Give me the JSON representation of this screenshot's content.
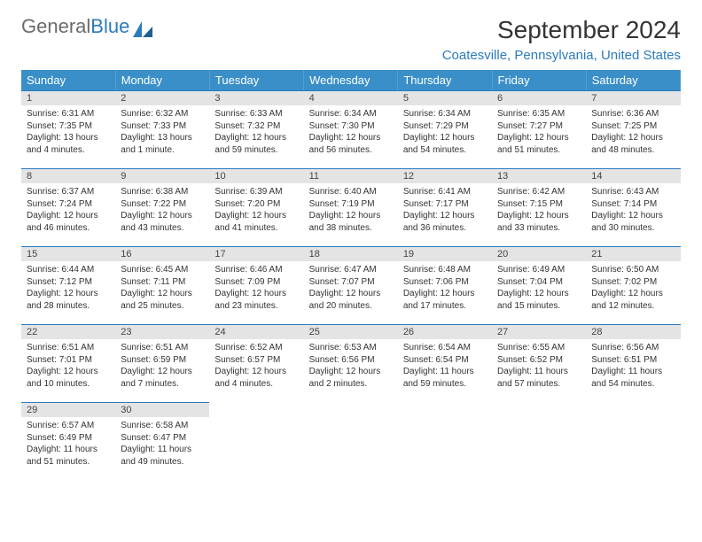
{
  "brand": {
    "part1": "General",
    "part2": "Blue"
  },
  "header": {
    "month_title": "September 2024",
    "location": "Coatesville, Pennsylvania, United States"
  },
  "colors": {
    "header_bg": "#3a8fc9",
    "accent": "#2b7bbd",
    "daynum_bg": "#e4e4e4",
    "text": "#333333",
    "logo_grey": "#6b6b6b"
  },
  "day_headers": [
    "Sunday",
    "Monday",
    "Tuesday",
    "Wednesday",
    "Thursday",
    "Friday",
    "Saturday"
  ],
  "weeks": [
    [
      {
        "n": "1",
        "sunrise": "Sunrise: 6:31 AM",
        "sunset": "Sunset: 7:35 PM",
        "daylight1": "Daylight: 13 hours",
        "daylight2": "and 4 minutes."
      },
      {
        "n": "2",
        "sunrise": "Sunrise: 6:32 AM",
        "sunset": "Sunset: 7:33 PM",
        "daylight1": "Daylight: 13 hours",
        "daylight2": "and 1 minute."
      },
      {
        "n": "3",
        "sunrise": "Sunrise: 6:33 AM",
        "sunset": "Sunset: 7:32 PM",
        "daylight1": "Daylight: 12 hours",
        "daylight2": "and 59 minutes."
      },
      {
        "n": "4",
        "sunrise": "Sunrise: 6:34 AM",
        "sunset": "Sunset: 7:30 PM",
        "daylight1": "Daylight: 12 hours",
        "daylight2": "and 56 minutes."
      },
      {
        "n": "5",
        "sunrise": "Sunrise: 6:34 AM",
        "sunset": "Sunset: 7:29 PM",
        "daylight1": "Daylight: 12 hours",
        "daylight2": "and 54 minutes."
      },
      {
        "n": "6",
        "sunrise": "Sunrise: 6:35 AM",
        "sunset": "Sunset: 7:27 PM",
        "daylight1": "Daylight: 12 hours",
        "daylight2": "and 51 minutes."
      },
      {
        "n": "7",
        "sunrise": "Sunrise: 6:36 AM",
        "sunset": "Sunset: 7:25 PM",
        "daylight1": "Daylight: 12 hours",
        "daylight2": "and 48 minutes."
      }
    ],
    [
      {
        "n": "8",
        "sunrise": "Sunrise: 6:37 AM",
        "sunset": "Sunset: 7:24 PM",
        "daylight1": "Daylight: 12 hours",
        "daylight2": "and 46 minutes."
      },
      {
        "n": "9",
        "sunrise": "Sunrise: 6:38 AM",
        "sunset": "Sunset: 7:22 PM",
        "daylight1": "Daylight: 12 hours",
        "daylight2": "and 43 minutes."
      },
      {
        "n": "10",
        "sunrise": "Sunrise: 6:39 AM",
        "sunset": "Sunset: 7:20 PM",
        "daylight1": "Daylight: 12 hours",
        "daylight2": "and 41 minutes."
      },
      {
        "n": "11",
        "sunrise": "Sunrise: 6:40 AM",
        "sunset": "Sunset: 7:19 PM",
        "daylight1": "Daylight: 12 hours",
        "daylight2": "and 38 minutes."
      },
      {
        "n": "12",
        "sunrise": "Sunrise: 6:41 AM",
        "sunset": "Sunset: 7:17 PM",
        "daylight1": "Daylight: 12 hours",
        "daylight2": "and 36 minutes."
      },
      {
        "n": "13",
        "sunrise": "Sunrise: 6:42 AM",
        "sunset": "Sunset: 7:15 PM",
        "daylight1": "Daylight: 12 hours",
        "daylight2": "and 33 minutes."
      },
      {
        "n": "14",
        "sunrise": "Sunrise: 6:43 AM",
        "sunset": "Sunset: 7:14 PM",
        "daylight1": "Daylight: 12 hours",
        "daylight2": "and 30 minutes."
      }
    ],
    [
      {
        "n": "15",
        "sunrise": "Sunrise: 6:44 AM",
        "sunset": "Sunset: 7:12 PM",
        "daylight1": "Daylight: 12 hours",
        "daylight2": "and 28 minutes."
      },
      {
        "n": "16",
        "sunrise": "Sunrise: 6:45 AM",
        "sunset": "Sunset: 7:11 PM",
        "daylight1": "Daylight: 12 hours",
        "daylight2": "and 25 minutes."
      },
      {
        "n": "17",
        "sunrise": "Sunrise: 6:46 AM",
        "sunset": "Sunset: 7:09 PM",
        "daylight1": "Daylight: 12 hours",
        "daylight2": "and 23 minutes."
      },
      {
        "n": "18",
        "sunrise": "Sunrise: 6:47 AM",
        "sunset": "Sunset: 7:07 PM",
        "daylight1": "Daylight: 12 hours",
        "daylight2": "and 20 minutes."
      },
      {
        "n": "19",
        "sunrise": "Sunrise: 6:48 AM",
        "sunset": "Sunset: 7:06 PM",
        "daylight1": "Daylight: 12 hours",
        "daylight2": "and 17 minutes."
      },
      {
        "n": "20",
        "sunrise": "Sunrise: 6:49 AM",
        "sunset": "Sunset: 7:04 PM",
        "daylight1": "Daylight: 12 hours",
        "daylight2": "and 15 minutes."
      },
      {
        "n": "21",
        "sunrise": "Sunrise: 6:50 AM",
        "sunset": "Sunset: 7:02 PM",
        "daylight1": "Daylight: 12 hours",
        "daylight2": "and 12 minutes."
      }
    ],
    [
      {
        "n": "22",
        "sunrise": "Sunrise: 6:51 AM",
        "sunset": "Sunset: 7:01 PM",
        "daylight1": "Daylight: 12 hours",
        "daylight2": "and 10 minutes."
      },
      {
        "n": "23",
        "sunrise": "Sunrise: 6:51 AM",
        "sunset": "Sunset: 6:59 PM",
        "daylight1": "Daylight: 12 hours",
        "daylight2": "and 7 minutes."
      },
      {
        "n": "24",
        "sunrise": "Sunrise: 6:52 AM",
        "sunset": "Sunset: 6:57 PM",
        "daylight1": "Daylight: 12 hours",
        "daylight2": "and 4 minutes."
      },
      {
        "n": "25",
        "sunrise": "Sunrise: 6:53 AM",
        "sunset": "Sunset: 6:56 PM",
        "daylight1": "Daylight: 12 hours",
        "daylight2": "and 2 minutes."
      },
      {
        "n": "26",
        "sunrise": "Sunrise: 6:54 AM",
        "sunset": "Sunset: 6:54 PM",
        "daylight1": "Daylight: 11 hours",
        "daylight2": "and 59 minutes."
      },
      {
        "n": "27",
        "sunrise": "Sunrise: 6:55 AM",
        "sunset": "Sunset: 6:52 PM",
        "daylight1": "Daylight: 11 hours",
        "daylight2": "and 57 minutes."
      },
      {
        "n": "28",
        "sunrise": "Sunrise: 6:56 AM",
        "sunset": "Sunset: 6:51 PM",
        "daylight1": "Daylight: 11 hours",
        "daylight2": "and 54 minutes."
      }
    ],
    [
      {
        "n": "29",
        "sunrise": "Sunrise: 6:57 AM",
        "sunset": "Sunset: 6:49 PM",
        "daylight1": "Daylight: 11 hours",
        "daylight2": "and 51 minutes."
      },
      {
        "n": "30",
        "sunrise": "Sunrise: 6:58 AM",
        "sunset": "Sunset: 6:47 PM",
        "daylight1": "Daylight: 11 hours",
        "daylight2": "and 49 minutes."
      },
      null,
      null,
      null,
      null,
      null
    ]
  ]
}
